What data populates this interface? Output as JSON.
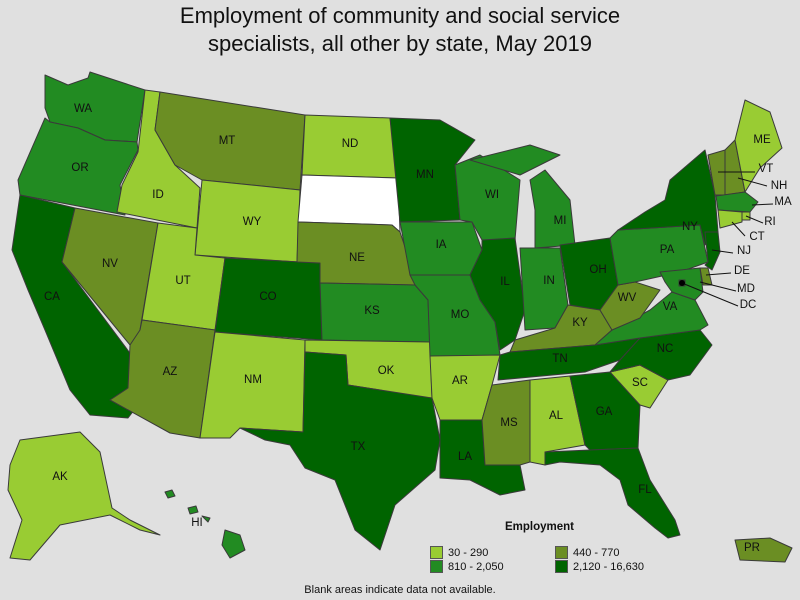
{
  "title_line1": "Employment of community and social service",
  "title_line2": "specialists, all other by state, May 2019",
  "legend": {
    "title": "Employment",
    "items": [
      {
        "label": "30 - 290",
        "color": "#99cc33"
      },
      {
        "label": "440 - 770",
        "color": "#6b8e23"
      },
      {
        "label": "810 - 2,050",
        "color": "#228b22"
      },
      {
        "label": "2,120 - 16,630",
        "color": "#006400"
      }
    ]
  },
  "note": "Blank areas indicate data not available.",
  "blank_color": "#ffffff",
  "states": [
    {
      "abbr": "WA",
      "label": "WA",
      "class": 2
    },
    {
      "abbr": "OR",
      "label": "OR",
      "class": 2
    },
    {
      "abbr": "CA",
      "label": "CA",
      "class": 3
    },
    {
      "abbr": "ID",
      "label": "ID",
      "class": 0
    },
    {
      "abbr": "NV",
      "label": "NV",
      "class": 1
    },
    {
      "abbr": "MT",
      "label": "MT",
      "class": 1
    },
    {
      "abbr": "WY",
      "label": "WY",
      "class": 0
    },
    {
      "abbr": "UT",
      "label": "UT",
      "class": 0
    },
    {
      "abbr": "AZ",
      "label": "AZ",
      "class": 1
    },
    {
      "abbr": "CO",
      "label": "CO",
      "class": 3
    },
    {
      "abbr": "NM",
      "label": "NM",
      "class": 0
    },
    {
      "abbr": "ND",
      "label": "ND",
      "class": 0
    },
    {
      "abbr": "SD",
      "label": "",
      "class": -1
    },
    {
      "abbr": "NE",
      "label": "NE",
      "class": 1
    },
    {
      "abbr": "KS",
      "label": "KS",
      "class": 2
    },
    {
      "abbr": "OK",
      "label": "OK",
      "class": 0
    },
    {
      "abbr": "TX",
      "label": "TX",
      "class": 3
    },
    {
      "abbr": "MN",
      "label": "MN",
      "class": 3
    },
    {
      "abbr": "IA",
      "label": "IA",
      "class": 2
    },
    {
      "abbr": "MO",
      "label": "MO",
      "class": 2
    },
    {
      "abbr": "AR",
      "label": "AR",
      "class": 0
    },
    {
      "abbr": "LA",
      "label": "LA",
      "class": 3
    },
    {
      "abbr": "WI",
      "label": "WI",
      "class": 2
    },
    {
      "abbr": "IL",
      "label": "IL",
      "class": 3
    },
    {
      "abbr": "MI",
      "label": "MI",
      "class": 2
    },
    {
      "abbr": "IN",
      "label": "IN",
      "class": 2
    },
    {
      "abbr": "OH",
      "label": "OH",
      "class": 3
    },
    {
      "abbr": "KY",
      "label": "KY",
      "class": 1
    },
    {
      "abbr": "TN",
      "label": "TN",
      "class": 3
    },
    {
      "abbr": "MS",
      "label": "MS",
      "class": 1
    },
    {
      "abbr": "AL",
      "label": "AL",
      "class": 0
    },
    {
      "abbr": "GA",
      "label": "GA",
      "class": 3
    },
    {
      "abbr": "FL",
      "label": "FL",
      "class": 3
    },
    {
      "abbr": "SC",
      "label": "SC",
      "class": 0
    },
    {
      "abbr": "NC",
      "label": "NC",
      "class": 3
    },
    {
      "abbr": "VA",
      "label": "VA",
      "class": 2
    },
    {
      "abbr": "WV",
      "label": "WV",
      "class": 1
    },
    {
      "abbr": "PA",
      "label": "PA",
      "class": 2
    },
    {
      "abbr": "NY",
      "label": "NY",
      "class": 3
    },
    {
      "abbr": "VT",
      "label": "VT",
      "class": 1
    },
    {
      "abbr": "NH",
      "label": "NH",
      "class": 1
    },
    {
      "abbr": "ME",
      "label": "ME",
      "class": 0
    },
    {
      "abbr": "MA",
      "label": "MA",
      "class": 2
    },
    {
      "abbr": "RI",
      "label": "RI",
      "class": 0
    },
    {
      "abbr": "CT",
      "label": "CT",
      "class": 0
    },
    {
      "abbr": "NJ",
      "label": "NJ",
      "class": 3
    },
    {
      "abbr": "DE",
      "label": "DE",
      "class": 1
    },
    {
      "abbr": "MD",
      "label": "MD",
      "class": 2
    },
    {
      "abbr": "DC",
      "label": "DC",
      "class": 3
    },
    {
      "abbr": "AK",
      "label": "AK",
      "class": 0
    },
    {
      "abbr": "HI",
      "label": "HI",
      "class": 2
    },
    {
      "abbr": "PR",
      "label": "PR",
      "class": 1
    }
  ]
}
